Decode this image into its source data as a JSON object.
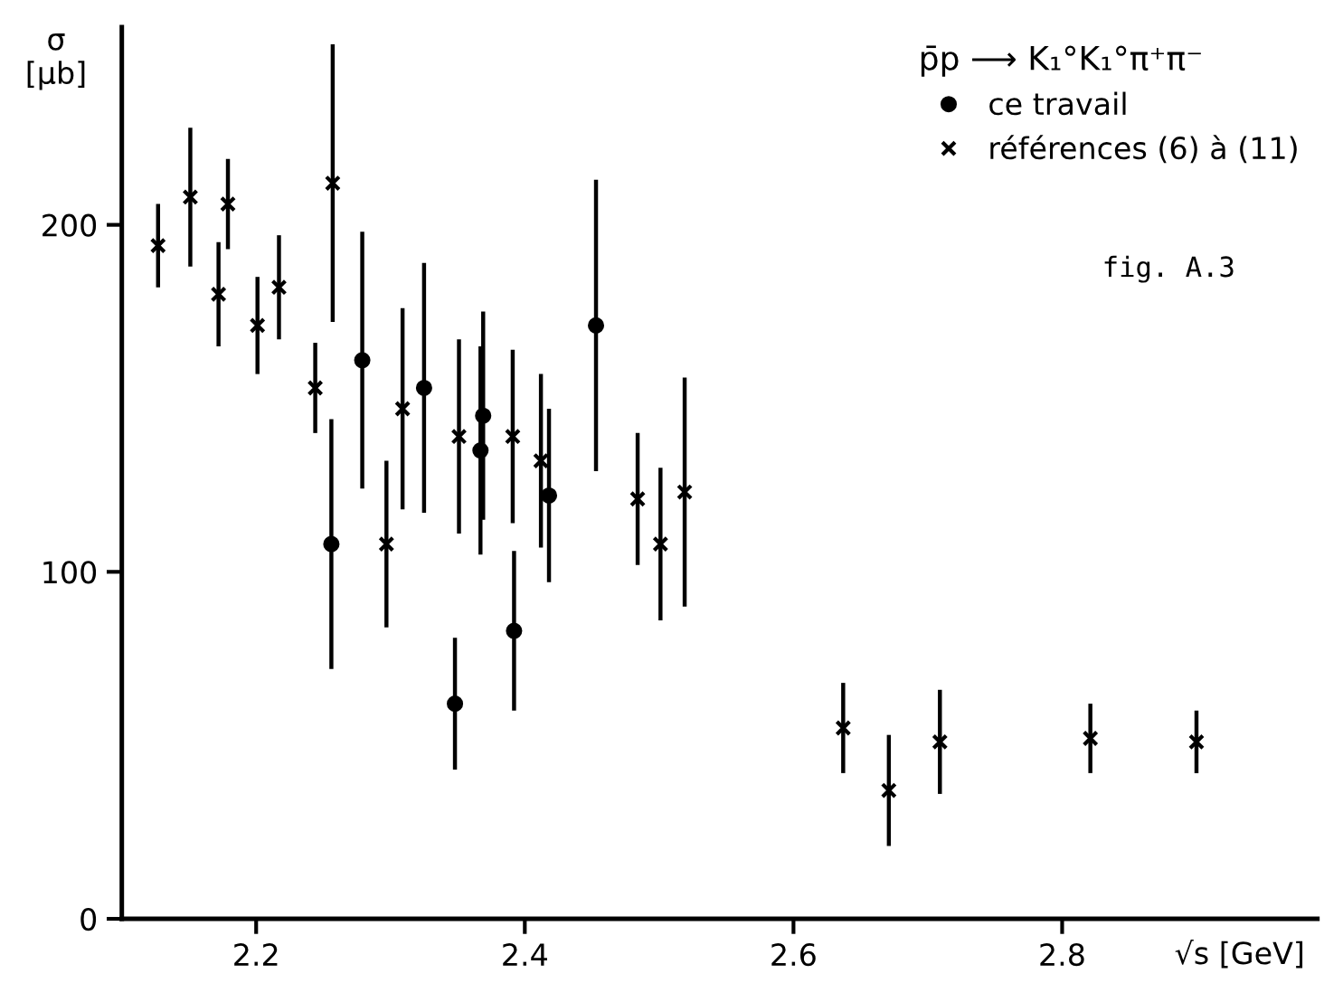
{
  "chart_data": {
    "type": "scatter",
    "xlabel": "√s [GeV]",
    "ylabel": "σ\n[μb]",
    "legend_title": "p̄p ⟶ K₁°K₁°π⁺π⁻",
    "annotations": [
      "fig. A.3"
    ],
    "xlim": [
      2.1,
      2.99
    ],
    "ylim": [
      0,
      257
    ],
    "xticks": [
      2.2,
      2.4,
      2.6,
      2.8
    ],
    "yticks": [
      0,
      100,
      200
    ],
    "grid": false,
    "legend": "top right",
    "series": [
      {
        "name": "ce travail",
        "color": "#000000",
        "marker": "circle",
        "x": [
          2.256,
          2.279,
          2.325,
          2.348,
          2.367,
          2.369,
          2.392,
          2.418,
          2.453
        ],
        "values": [
          108,
          161,
          153,
          62,
          135,
          145,
          83,
          122,
          171
        ],
        "errors": [
          36,
          37,
          36,
          19,
          30,
          30,
          23,
          25,
          42
        ]
      },
      {
        "name": "références (6) à (11)",
        "color": "#000000",
        "marker": "cross",
        "x": [
          2.127,
          2.151,
          2.172,
          2.179,
          2.201,
          2.217,
          2.244,
          2.257,
          2.297,
          2.309,
          2.351,
          2.391,
          2.412,
          2.484,
          2.501,
          2.519,
          2.637,
          2.671,
          2.709,
          2.821,
          2.9
        ],
        "values": [
          194,
          208,
          180,
          206,
          171,
          182,
          153,
          212,
          108,
          147,
          139,
          139,
          132,
          121,
          108,
          123,
          55,
          37,
          51,
          52,
          51
        ],
        "errors": [
          12,
          20,
          15,
          13,
          14,
          15,
          13,
          40,
          24,
          29,
          28,
          25,
          25,
          19,
          22,
          33,
          13,
          16,
          15,
          10,
          9
        ]
      }
    ]
  }
}
